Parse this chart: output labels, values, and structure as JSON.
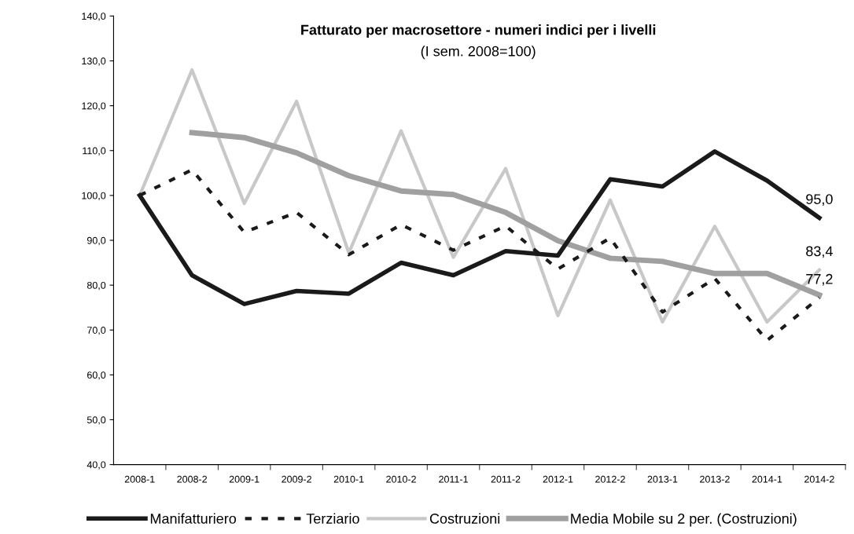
{
  "chart_data": {
    "type": "line",
    "title": "Fatturato per macrosettore - numeri indici per i livelli",
    "subtitle": "(I sem. 2008=100)",
    "categories": [
      "2008-1",
      "2008-2",
      "2009-1",
      "2009-2",
      "2010-1",
      "2010-2",
      "2011-1",
      "2011-2",
      "2012-1",
      "2012-2",
      "2013-1",
      "2013-2",
      "2014-1",
      "2014-2"
    ],
    "series": [
      {
        "name": "Manifatturiero",
        "color": "#1a1a1a",
        "line_style": "solid",
        "values": [
          100,
          82.2,
          75.8,
          78.7,
          78.1,
          85.0,
          82.2,
          87.6,
          86.6,
          103.6,
          102.0,
          109.8,
          103.3,
          95.0
        ]
      },
      {
        "name": "Terziario",
        "color": "#1a1a1a",
        "line_style": "dashed",
        "values": [
          100,
          105.7,
          91.8,
          96.2,
          86.8,
          93.5,
          87.8,
          93.2,
          83.6,
          90.5,
          74.0,
          81.5,
          67.7,
          77.2
        ]
      },
      {
        "name": "Costruzioni",
        "color": "#c8c8c8",
        "line_style": "solid",
        "values": [
          100,
          128.0,
          98.2,
          121.0,
          87.2,
          114.4,
          86.2,
          106.0,
          73.2,
          99.0,
          71.8,
          93.1,
          71.8,
          83.4
        ]
      },
      {
        "name": "Media Mobile su 2 per. (Costruzioni)",
        "color": "#a0a0a0",
        "line_style": "solid",
        "values": [
          null,
          114.0,
          112.9,
          109.5,
          104.4,
          101.0,
          100.2,
          96.2,
          89.9,
          86.0,
          85.3,
          82.6,
          82.6,
          77.8
        ]
      }
    ],
    "annotations": [
      {
        "text": "95,0",
        "x": "2014-2",
        "y": 95.0
      },
      {
        "text": "83,4",
        "x": "2014-2",
        "y": 83.4
      },
      {
        "text": "77,2",
        "x": "2014-2",
        "y": 77.2
      }
    ],
    "ylim": [
      40,
      140
    ],
    "yticks": [
      {
        "value": 40,
        "label": "40,0"
      },
      {
        "value": 50,
        "label": "50,0"
      },
      {
        "value": 60,
        "label": "60,0"
      },
      {
        "value": 70,
        "label": "70,0"
      },
      {
        "value": 80,
        "label": "80,0"
      },
      {
        "value": 90,
        "label": "90,0"
      },
      {
        "value": 100,
        "label": "100,0"
      },
      {
        "value": 110,
        "label": "110,0"
      },
      {
        "value": 120,
        "label": "120,0"
      },
      {
        "value": 130,
        "label": "130,0"
      },
      {
        "value": 140,
        "label": "140,0"
      }
    ],
    "grid": false,
    "legend": "bottom",
    "marker": "none"
  }
}
